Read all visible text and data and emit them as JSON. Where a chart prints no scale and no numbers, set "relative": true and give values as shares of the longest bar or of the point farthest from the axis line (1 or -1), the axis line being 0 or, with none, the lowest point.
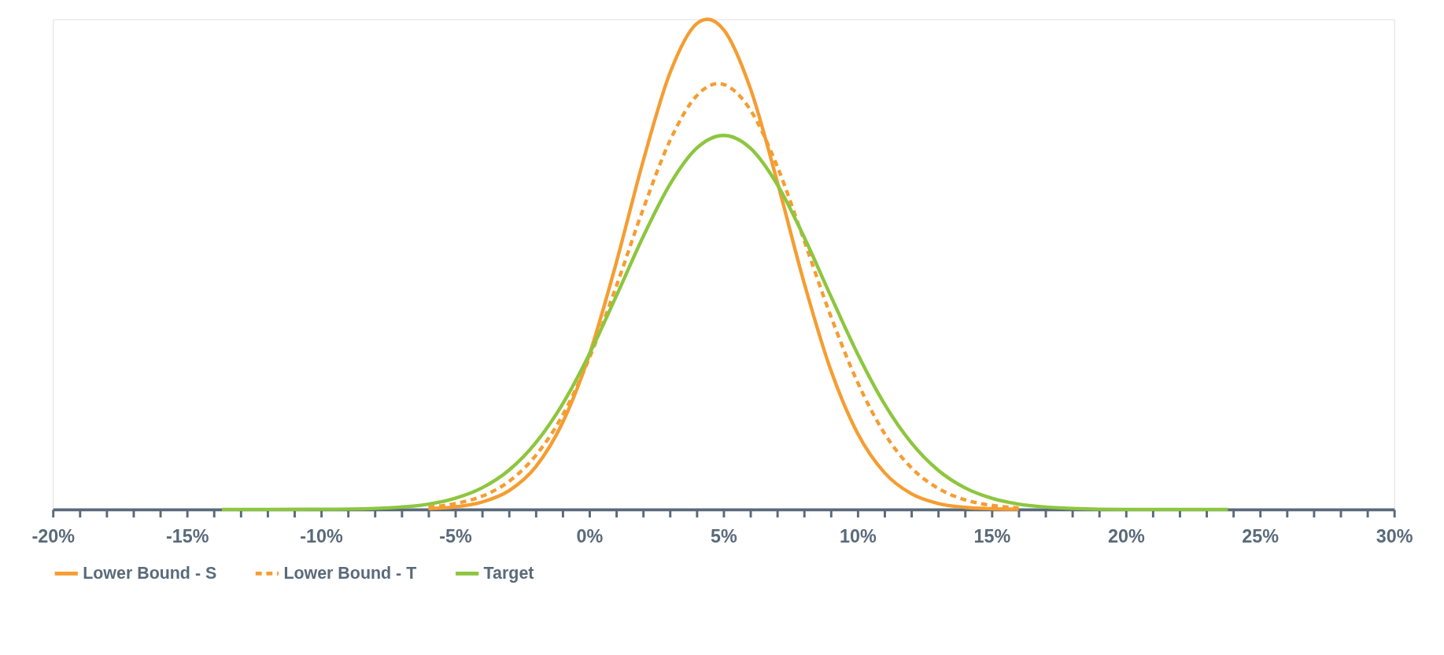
{
  "chart_data": {
    "type": "line",
    "relative": true,
    "xlim": [
      -20,
      30
    ],
    "xticks": [
      {
        "value": -20,
        "label": "-20%"
      },
      {
        "value": -19,
        "label": null
      },
      {
        "value": -18,
        "label": null
      },
      {
        "value": -17,
        "label": null
      },
      {
        "value": -16,
        "label": null
      },
      {
        "value": -15,
        "label": "-15%"
      },
      {
        "value": -14,
        "label": null
      },
      {
        "value": -13,
        "label": null
      },
      {
        "value": -12,
        "label": null
      },
      {
        "value": -11,
        "label": null
      },
      {
        "value": -10,
        "label": "-10%"
      },
      {
        "value": -9,
        "label": null
      },
      {
        "value": -8,
        "label": null
      },
      {
        "value": -7,
        "label": null
      },
      {
        "value": -6,
        "label": null
      },
      {
        "value": -5,
        "label": "-5%"
      },
      {
        "value": -4,
        "label": null
      },
      {
        "value": -3,
        "label": null
      },
      {
        "value": -2,
        "label": null
      },
      {
        "value": -1,
        "label": null
      },
      {
        "value": 0,
        "label": "0%"
      },
      {
        "value": 1,
        "label": null
      },
      {
        "value": 2,
        "label": null
      },
      {
        "value": 3,
        "label": null
      },
      {
        "value": 4,
        "label": null
      },
      {
        "value": 5,
        "label": "5%"
      },
      {
        "value": 6,
        "label": null
      },
      {
        "value": 7,
        "label": null
      },
      {
        "value": 8,
        "label": null
      },
      {
        "value": 9,
        "label": null
      },
      {
        "value": 10,
        "label": "10%"
      },
      {
        "value": 11,
        "label": null
      },
      {
        "value": 12,
        "label": null
      },
      {
        "value": 13,
        "label": null
      },
      {
        "value": 14,
        "label": null
      },
      {
        "value": 15,
        "label": "15%"
      },
      {
        "value": 16,
        "label": null
      },
      {
        "value": 17,
        "label": null
      },
      {
        "value": 18,
        "label": null
      },
      {
        "value": 19,
        "label": null
      },
      {
        "value": 20,
        "label": "20%"
      },
      {
        "value": 21,
        "label": null
      },
      {
        "value": 22,
        "label": null
      },
      {
        "value": 23,
        "label": null
      },
      {
        "value": 24,
        "label": null
      },
      {
        "value": 25,
        "label": "25%"
      },
      {
        "value": 26,
        "label": null
      },
      {
        "value": 27,
        "label": null
      },
      {
        "value": 28,
        "label": null
      },
      {
        "value": 29,
        "label": null
      },
      {
        "value": 30,
        "label": "30%"
      }
    ],
    "legend": "bottom",
    "grid": false,
    "marker": "none",
    "series": [
      {
        "name": "Lower Bound - S",
        "color": "#f59d32",
        "line_style": "solid",
        "x": [
          -6,
          -5,
          -4,
          -3,
          -2,
          -1,
          0,
          1,
          2,
          3,
          4,
          4.4,
          5,
          6,
          7,
          8,
          9,
          10,
          11,
          12,
          13,
          14,
          15,
          16
        ],
        "values": [
          0.0016,
          0.0052,
          0.015,
          0.038,
          0.087,
          0.177,
          0.316,
          0.503,
          0.71,
          0.89,
          0.991,
          1,
          0.979,
          0.859,
          0.669,
          0.463,
          0.284,
          0.155,
          0.075,
          0.032,
          0.012,
          0.0042,
          0.0013,
          0.0003
        ]
      },
      {
        "name": "Lower Bound - T",
        "color": "#f59d32",
        "line_style": "dashed",
        "x": [
          -6,
          -5,
          -4,
          -3,
          -2,
          -1,
          0,
          1,
          2,
          3,
          4,
          4.8,
          5,
          6,
          7,
          8,
          9,
          10,
          11,
          12,
          13,
          14,
          15,
          16
        ],
        "values": [
          0.0046,
          0.0118,
          0.027,
          0.057,
          0.11,
          0.192,
          0.309,
          0.455,
          0.612,
          0.752,
          0.844,
          0.869,
          0.867,
          0.815,
          0.7,
          0.549,
          0.394,
          0.259,
          0.155,
          0.085,
          0.043,
          0.0196,
          0.0082,
          0.0031
        ]
      },
      {
        "name": "Target",
        "color": "#8dc63f",
        "line_style": "solid",
        "x": [
          -13.7,
          -12,
          -10,
          -8,
          -6,
          -5,
          -4,
          -3,
          -2,
          -1,
          0,
          1,
          2,
          3,
          4,
          5,
          6,
          7,
          8,
          9,
          10,
          11,
          12,
          13,
          14,
          15,
          16,
          18,
          20,
          23.8
        ],
        "values": [
          0,
          0,
          0.0003,
          0.002,
          0.0108,
          0.0227,
          0.044,
          0.08,
          0.136,
          0.215,
          0.317,
          0.435,
          0.556,
          0.663,
          0.737,
          0.763,
          0.737,
          0.663,
          0.556,
          0.435,
          0.317,
          0.215,
          0.136,
          0.08,
          0.044,
          0.0227,
          0.0108,
          0.002,
          0,
          0
        ]
      }
    ]
  }
}
